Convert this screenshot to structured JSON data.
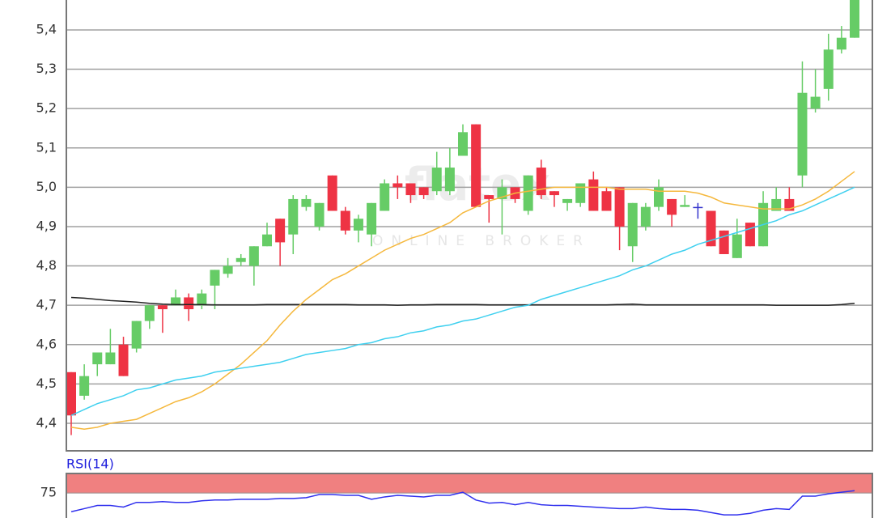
{
  "chart_data": [
    {
      "type": "candlestick",
      "watermark": "flatex",
      "watermark_sub": "ONLINE BROKER",
      "ylim": [
        4.33,
        5.476
      ],
      "yticks": [
        {
          "value": 4.4,
          "label": "4,4"
        },
        {
          "value": 4.5,
          "label": "4,5"
        },
        {
          "value": 4.6,
          "label": "4,6"
        },
        {
          "value": 4.7,
          "label": "4,7"
        },
        {
          "value": 4.8,
          "label": "4,8"
        },
        {
          "value": 4.9,
          "label": "4,9"
        },
        {
          "value": 5.0,
          "label": "5,0"
        },
        {
          "value": 5.1,
          "label": "5,1"
        },
        {
          "value": 5.2,
          "label": "5,2"
        },
        {
          "value": 5.3,
          "label": "5,3"
        },
        {
          "value": 5.4,
          "label": "5,4"
        }
      ],
      "grid": true,
      "up_color": "#66cc66",
      "down_color": "#ee3344",
      "flat_color": "#3333cc",
      "open": [
        4.53,
        4.47,
        4.55,
        4.55,
        4.6,
        4.59,
        4.66,
        4.7,
        4.7,
        4.72,
        4.7,
        4.75,
        4.78,
        4.81,
        4.8,
        4.85,
        4.92,
        4.88,
        4.95,
        4.9,
        5.03,
        4.94,
        4.89,
        4.88,
        4.94,
        5.01,
        5.01,
        5.0,
        4.99,
        4.99,
        5.08,
        5.16,
        4.98,
        4.97,
        5.0,
        4.94,
        5.05,
        4.99,
        4.96,
        4.96,
        5.02,
        4.99,
        5.0,
        4.85,
        4.9,
        4.95,
        4.97,
        4.95,
        4.95,
        4.94,
        4.89,
        4.82,
        4.91,
        4.85,
        4.94,
        4.97,
        5.03,
        5.2,
        5.25,
        5.35,
        5.38
      ],
      "high": [
        4.53,
        4.55,
        4.58,
        4.64,
        4.62,
        4.66,
        4.7,
        4.7,
        4.74,
        4.73,
        4.74,
        4.79,
        4.82,
        4.83,
        4.85,
        4.91,
        4.92,
        4.98,
        4.98,
        4.96,
        5.03,
        4.95,
        4.93,
        4.96,
        5.02,
        5.03,
        5.01,
        5.0,
        5.09,
        5.1,
        5.16,
        5.16,
        4.98,
        5.02,
        5.0,
        5.03,
        5.07,
        4.99,
        4.97,
        5.01,
        5.04,
        5.0,
        5.0,
        4.96,
        4.96,
        5.02,
        4.97,
        4.98,
        4.96,
        4.94,
        4.89,
        4.92,
        4.91,
        4.99,
        5.0,
        5.0,
        5.32,
        5.3,
        5.39,
        5.41,
        5.5
      ],
      "low": [
        4.37,
        4.46,
        4.52,
        4.55,
        4.52,
        4.58,
        4.64,
        4.63,
        4.7,
        4.66,
        4.69,
        4.69,
        4.77,
        4.8,
        4.75,
        4.85,
        4.8,
        4.83,
        4.94,
        4.89,
        4.94,
        4.88,
        4.86,
        4.85,
        4.94,
        4.97,
        4.96,
        4.97,
        4.98,
        4.98,
        5.08,
        4.95,
        4.91,
        4.88,
        4.96,
        4.93,
        4.97,
        4.95,
        4.94,
        4.95,
        4.94,
        4.94,
        4.84,
        4.81,
        4.89,
        4.94,
        4.9,
        4.95,
        4.92,
        4.85,
        4.83,
        4.82,
        4.85,
        4.85,
        4.94,
        4.94,
        5.0,
        5.19,
        5.22,
        5.34,
        5.38
      ],
      "close": [
        4.42,
        4.52,
        4.58,
        4.58,
        4.52,
        4.66,
        4.7,
        4.69,
        4.72,
        4.69,
        4.73,
        4.79,
        4.8,
        4.82,
        4.85,
        4.88,
        4.86,
        4.97,
        4.97,
        4.96,
        4.94,
        4.89,
        4.92,
        4.96,
        5.01,
        5.0,
        4.98,
        4.98,
        5.05,
        5.05,
        5.14,
        4.95,
        4.97,
        5.0,
        4.97,
        5.03,
        4.98,
        4.98,
        4.97,
        5.01,
        4.94,
        4.94,
        4.9,
        4.96,
        4.95,
        5.0,
        4.93,
        4.955,
        4.95,
        4.85,
        4.83,
        4.88,
        4.85,
        4.96,
        4.97,
        4.94,
        5.24,
        5.23,
        5.35,
        5.38,
        5.49
      ],
      "series": [
        {
          "color": "#222222",
          "values": [
            4.72,
            4.718,
            4.715,
            4.712,
            4.71,
            4.708,
            4.705,
            4.703,
            4.702,
            4.702,
            4.702,
            4.701,
            4.701,
            4.701,
            4.701,
            4.702,
            4.702,
            4.702,
            4.702,
            4.702,
            4.702,
            4.702,
            4.701,
            4.701,
            4.701,
            4.7,
            4.701,
            4.701,
            4.702,
            4.702,
            4.702,
            4.702,
            4.701,
            4.701,
            4.701,
            4.701,
            4.701,
            4.701,
            4.701,
            4.701,
            4.701,
            4.701,
            4.702,
            4.703,
            4.701,
            4.701,
            4.701,
            4.701,
            4.701,
            4.701,
            4.701,
            4.701,
            4.701,
            4.701,
            4.7,
            4.7,
            4.7,
            4.7,
            4.7,
            4.702,
            4.705
          ]
        },
        {
          "color": "#f5b83d",
          "values": [
            4.39,
            4.385,
            4.39,
            4.4,
            4.405,
            4.41,
            4.425,
            4.44,
            4.455,
            4.465,
            4.48,
            4.5,
            4.525,
            4.55,
            4.58,
            4.61,
            4.65,
            4.685,
            4.715,
            4.74,
            4.765,
            4.78,
            4.8,
            4.82,
            4.84,
            4.855,
            4.87,
            4.88,
            4.895,
            4.91,
            4.935,
            4.95,
            4.965,
            4.975,
            4.985,
            4.99,
            4.995,
            5.0,
            5.0,
            5.0,
            5.0,
            5.0,
            4.995,
            4.995,
            4.995,
            4.99,
            4.99,
            4.99,
            4.985,
            4.975,
            4.96,
            4.955,
            4.95,
            4.945,
            4.945,
            4.945,
            4.955,
            4.97,
            4.99,
            5.015,
            5.04
          ]
        },
        {
          "color": "#3fd0ef",
          "values": [
            4.42,
            4.435,
            4.45,
            4.46,
            4.47,
            4.485,
            4.49,
            4.5,
            4.51,
            4.515,
            4.52,
            4.53,
            4.535,
            4.54,
            4.545,
            4.55,
            4.555,
            4.565,
            4.575,
            4.58,
            4.585,
            4.59,
            4.6,
            4.605,
            4.615,
            4.62,
            4.63,
            4.635,
            4.645,
            4.65,
            4.66,
            4.665,
            4.675,
            4.685,
            4.695,
            4.7,
            4.715,
            4.725,
            4.735,
            4.745,
            4.755,
            4.765,
            4.775,
            4.79,
            4.8,
            4.815,
            4.83,
            4.84,
            4.855,
            4.865,
            4.875,
            4.885,
            4.895,
            4.905,
            4.915,
            4.93,
            4.94,
            4.955,
            4.97,
            4.985,
            5.0
          ]
        }
      ]
    },
    {
      "type": "line",
      "title": "RSI(14)",
      "ylim": [
        43,
        100
      ],
      "yticks": [
        75
      ],
      "band": [
        75,
        100
      ],
      "band_color": "#f08080",
      "series": [
        {
          "color": "#3030ee",
          "values": [
            51,
            55,
            59,
            59,
            57,
            63,
            63,
            64,
            63,
            63,
            65,
            66,
            66,
            67,
            67,
            67,
            68,
            68,
            69,
            73,
            73,
            72,
            72,
            67,
            70,
            72,
            71,
            70,
            72,
            72,
            76,
            66,
            62,
            63,
            60,
            63,
            60,
            59,
            59,
            58,
            57,
            56,
            55,
            55,
            57,
            55,
            54,
            54,
            53,
            50,
            47,
            47,
            49,
            53,
            55,
            54,
            71,
            71,
            74,
            76,
            78
          ]
        }
      ]
    }
  ]
}
